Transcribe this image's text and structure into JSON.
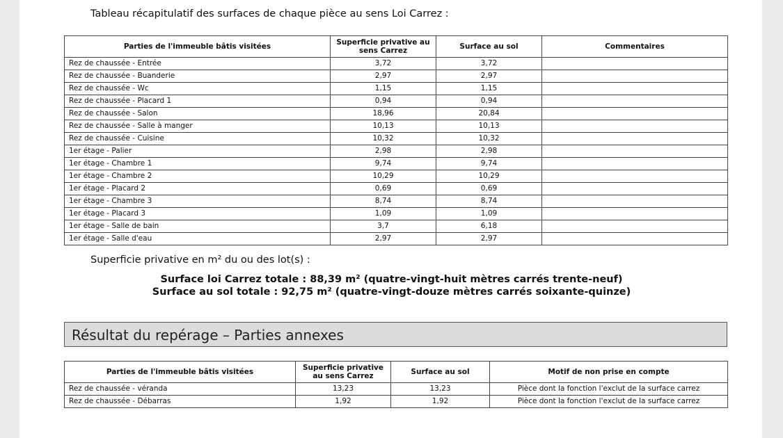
{
  "intro": "Tableau récapitulatif des surfaces de chaque pièce au sens Loi Carrez :",
  "table1": {
    "header": [
      "Parties de l'immeuble bâtis visitées",
      "Superficie privative au sens Carrez",
      "Surface au sol",
      "Commentaires"
    ],
    "rows": [
      [
        "Rez de chaussée - Entrée",
        "3,72",
        "3,72",
        ""
      ],
      [
        "Rez de chaussée - Buanderie",
        "2,97",
        "2,97",
        ""
      ],
      [
        "Rez de chaussée - Wc",
        "1,15",
        "1,15",
        ""
      ],
      [
        "Rez de chaussée - Placard 1",
        "0,94",
        "0,94",
        ""
      ],
      [
        "Rez de chaussée - Salon",
        "18,96",
        "20,84",
        ""
      ],
      [
        "Rez de chaussée - Salle à manger",
        "10,13",
        "10,13",
        ""
      ],
      [
        "Rez de chaussée - Cuisine",
        "10,32",
        "10,32",
        ""
      ],
      [
        "1er étage - Palier",
        "2,98",
        "2,98",
        ""
      ],
      [
        "1er étage - Chambre 1",
        "9,74",
        "9,74",
        ""
      ],
      [
        "1er étage - Chambre 2",
        "10,29",
        "10,29",
        ""
      ],
      [
        "1er étage - Placard 2",
        "0,69",
        "0,69",
        ""
      ],
      [
        "1er étage - Chambre 3",
        "8,74",
        "8,74",
        ""
      ],
      [
        "1er étage - Placard 3",
        "1,09",
        "1,09",
        ""
      ],
      [
        "1er étage - Salle de bain",
        "3,7",
        "6,18",
        ""
      ],
      [
        "1er étage - Salle d'eau",
        "2,97",
        "2,97",
        ""
      ]
    ]
  },
  "summary_label": "Superficie privative en m² du ou des lot(s) :",
  "totals": [
    "Surface loi Carrez totale : 88,39 m² (quatre-vingt-huit mètres carrés trente-neuf)",
    "Surface au sol totale : 92,75 m² (quatre-vingt-douze mètres carrés soixante-quinze)"
  ],
  "section_title": "Résultat du repérage – Parties annexes",
  "table2": {
    "header": [
      "Parties de l'immeuble bâtis visitées",
      "Superficie privative au sens Carrez",
      "Surface au sol",
      "Motif de non prise en compte"
    ],
    "rows": [
      [
        "Rez de chaussée - véranda",
        "13,23",
        "13,23",
        "Pièce dont la fonction l'exclut de la surface carrez"
      ],
      [
        "Rez de chaussée - Débarras",
        "1,92",
        "1,92",
        "Pièce dont la fonction l'exclut de la surface carrez"
      ]
    ]
  }
}
